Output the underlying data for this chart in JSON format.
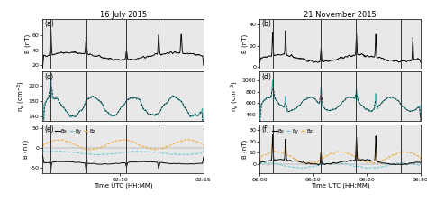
{
  "title_left": "16 July 2015",
  "title_right": "21 November 2015",
  "panel_labels": [
    "(a)",
    "(c)",
    "(e)",
    "(b)",
    "(d)",
    "(f)"
  ],
  "ylabel_a": "B (nT)",
  "ylabel_c": "n_e (cm⁻³)",
  "ylabel_e": "B (nT)",
  "xlabel": "Time UTC (HH:MM)",
  "xticks_left_labels": [
    "02:10",
    "02:15"
  ],
  "xticks_left_pos": [
    0.48,
    1.0
  ],
  "xticks_right_labels": [
    "06:00",
    "06:10",
    "06:20",
    "06:30"
  ],
  "xticks_right_pos": [
    0.0,
    0.333,
    0.667,
    1.0
  ],
  "color_Bx": "#000000",
  "color_By": "#5bc8d4",
  "color_Bz": "#f5a623",
  "color_ne": "#3aacb0",
  "vline_color": "#333333",
  "panel_bg": "#e8e8e8"
}
